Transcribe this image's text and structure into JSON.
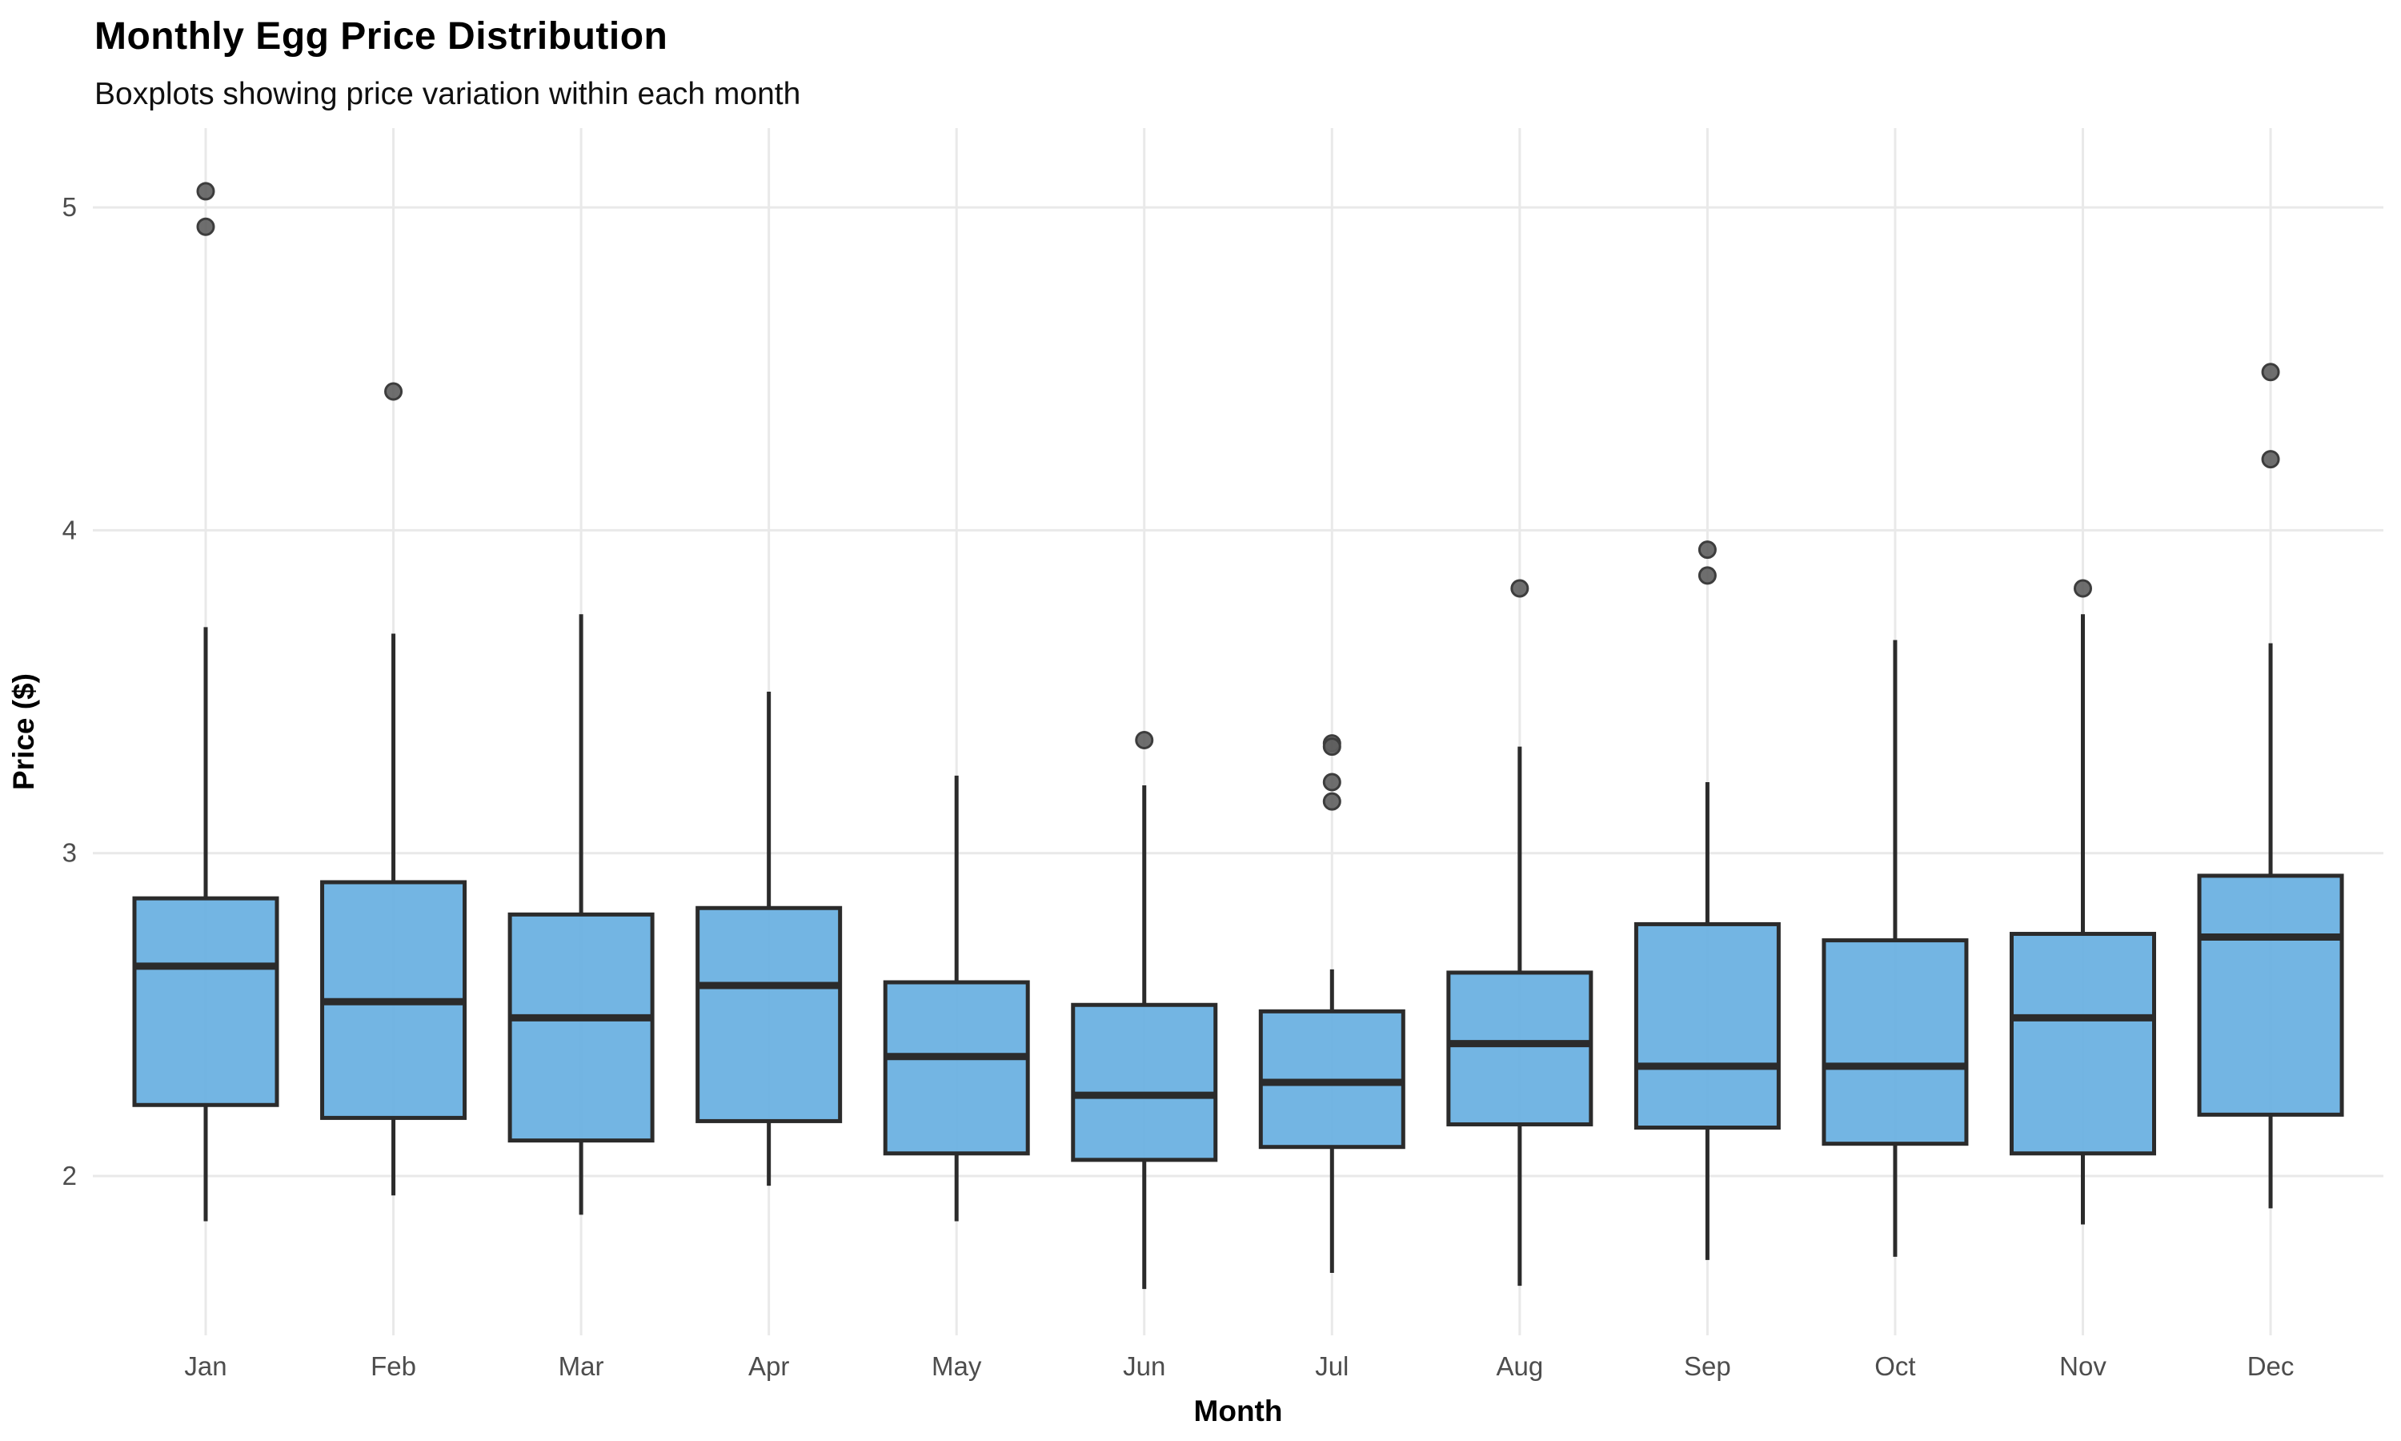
{
  "figure": {
    "title": "Monthly Egg Price Distribution",
    "subtitle": "Boxplots showing price variation within each month"
  },
  "chart_data": {
    "type": "boxplot",
    "title": "Monthly Egg Price Distribution",
    "subtitle": "Boxplots showing price variation within each month",
    "xlabel": "Month",
    "ylabel": "Price ($)",
    "categories": [
      "Jan",
      "Feb",
      "Mar",
      "Apr",
      "May",
      "Jun",
      "Jul",
      "Aug",
      "Sep",
      "Oct",
      "Nov",
      "Dec"
    ],
    "yticks": [
      2,
      3,
      4,
      5
    ],
    "ylim": [
      1.55,
      5.25
    ],
    "grid": "major gridlines only, light gray on white background",
    "legend": "none",
    "boxes": [
      {
        "label": "Jan",
        "whisker_low": 1.86,
        "q1": 2.22,
        "median": 2.65,
        "q3": 2.86,
        "whisker_high": 3.7,
        "outliers": [
          5.05,
          4.94
        ]
      },
      {
        "label": "Feb",
        "whisker_low": 1.94,
        "q1": 2.18,
        "median": 2.54,
        "q3": 2.91,
        "whisker_high": 3.68,
        "outliers": [
          4.43
        ]
      },
      {
        "label": "Mar",
        "whisker_low": 1.88,
        "q1": 2.11,
        "median": 2.49,
        "q3": 2.81,
        "whisker_high": 3.74,
        "outliers": []
      },
      {
        "label": "Apr",
        "whisker_low": 1.97,
        "q1": 2.17,
        "median": 2.59,
        "q3": 2.83,
        "whisker_high": 3.5,
        "outliers": []
      },
      {
        "label": "May",
        "whisker_low": 1.86,
        "q1": 2.07,
        "median": 2.37,
        "q3": 2.6,
        "whisker_high": 3.24,
        "outliers": []
      },
      {
        "label": "Jun",
        "whisker_low": 1.65,
        "q1": 2.05,
        "median": 2.25,
        "q3": 2.53,
        "whisker_high": 3.21,
        "outliers": [
          3.35
        ]
      },
      {
        "label": "Jul",
        "whisker_low": 1.7,
        "q1": 2.09,
        "median": 2.29,
        "q3": 2.51,
        "whisker_high": 2.64,
        "outliers": [
          3.34,
          3.33,
          3.22,
          3.16
        ]
      },
      {
        "label": "Aug",
        "whisker_low": 1.66,
        "q1": 2.16,
        "median": 2.41,
        "q3": 2.63,
        "whisker_high": 3.33,
        "outliers": [
          3.82
        ]
      },
      {
        "label": "Sep",
        "whisker_low": 1.74,
        "q1": 2.15,
        "median": 2.34,
        "q3": 2.78,
        "whisker_high": 3.22,
        "outliers": [
          3.94,
          3.86
        ]
      },
      {
        "label": "Oct",
        "whisker_low": 1.75,
        "q1": 2.1,
        "median": 2.34,
        "q3": 2.73,
        "whisker_high": 3.66,
        "outliers": []
      },
      {
        "label": "Nov",
        "whisker_low": 1.85,
        "q1": 2.07,
        "median": 2.49,
        "q3": 2.75,
        "whisker_high": 3.74,
        "outliers": [
          3.82
        ]
      },
      {
        "label": "Dec",
        "whisker_low": 1.9,
        "q1": 2.19,
        "median": 2.74,
        "q3": 2.93,
        "whisker_high": 3.65,
        "outliers": [
          4.49,
          4.22
        ]
      }
    ],
    "colors": {
      "box_fill": "#6CB1E1",
      "box_border": "#2B2B2B",
      "median_line": "#2B2B2B",
      "whisker": "#2B2B2B",
      "outlier_fill": "#5E5E5E",
      "outlier_stroke": "#3D3D3D",
      "gridline": "#E9E9E9",
      "axis_text": "#4D4D4D",
      "title_text": "#000000",
      "background": "#FFFFFF"
    }
  }
}
